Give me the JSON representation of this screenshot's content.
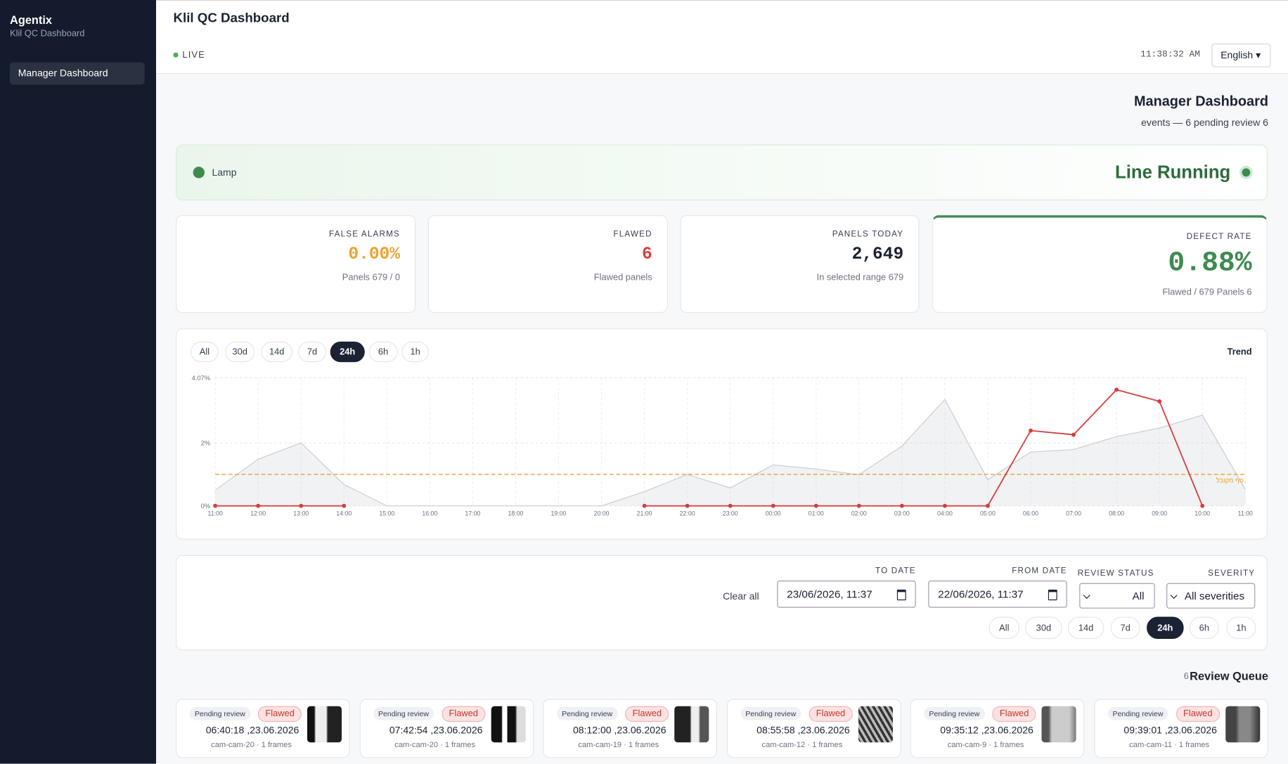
{
  "sidebar": {
    "brand": "Agentix",
    "subtitle": "Klil QC Dashboard",
    "nav": [
      "Manager Dashboard"
    ]
  },
  "header": {
    "title": "Klil QC Dashboard",
    "status": "LIVE",
    "clock": "11:38:32 AM",
    "language": "English"
  },
  "page": {
    "title": "Manager Dashboard",
    "subtitle": "events — 6 pending review 6"
  },
  "line_status": {
    "device": "Lamp",
    "state": "Line Running"
  },
  "kpis": [
    {
      "label": "FALSE ALARMS",
      "value": "0.00%",
      "note": "Panels 679 / 0",
      "color": "#f0a030"
    },
    {
      "label": "FLAWED",
      "value": "6",
      "note": "Flawed panels",
      "color": "#dc3c3c"
    },
    {
      "label": "PANELS TODAY",
      "value": "2,649",
      "note": "In selected range 679",
      "color": "#1a2233"
    },
    {
      "label": "DEFECT RATE",
      "value": "0.88%",
      "note": "Flawed / 679 Panels 6",
      "color": "#3d8b4f"
    }
  ],
  "ranges": [
    "All",
    "30d",
    "14d",
    "7d",
    "24h",
    "6h",
    "1h"
  ],
  "active_range": 4,
  "chart_data": {
    "type": "line",
    "title": "Trend",
    "x": [
      "11:00",
      "12:00",
      "13:00",
      "14:00",
      "15:00",
      "16:00",
      "17:00",
      "18:00",
      "19:00",
      "20:00",
      "21:00",
      "22:00",
      "23:00",
      "00:00",
      "01:00",
      "02:00",
      "03:00",
      "04:00",
      "05:00",
      "06:00",
      "07:00",
      "08:00",
      "09:00",
      "10:00",
      "11:00"
    ],
    "series": [
      {
        "type": "area",
        "color": "#c9ccd3",
        "values": [
          0.5,
          1.48,
          2.0,
          0.68,
          0,
          0,
          0,
          0,
          0,
          0,
          0.45,
          1.0,
          0.57,
          1.3,
          1.17,
          0.99,
          1.9,
          3.38,
          0.83,
          1.71,
          1.79,
          2.2,
          2.47,
          2.88,
          0.52
        ]
      },
      {
        "type": "line",
        "color": "#d63b3b",
        "values": [
          0,
          0,
          0,
          0,
          null,
          null,
          null,
          null,
          null,
          null,
          0,
          0,
          0,
          0,
          0,
          0,
          0,
          0,
          0,
          2.39,
          2.26,
          3.69,
          3.32,
          0,
          null
        ]
      }
    ],
    "threshold": {
      "value": 1.0,
      "label": "סף מקובל",
      "color": "#e8a030"
    },
    "ylim": [
      0,
      4.07
    ],
    "yticks": [
      {
        "value": 0,
        "label": "0%"
      },
      {
        "value": 2,
        "label": "2%"
      },
      {
        "value": 4.07,
        "label": "4.07%"
      }
    ],
    "grid": true
  },
  "filters": {
    "clear": "Clear all",
    "fields": [
      {
        "label": "TO DATE",
        "value": "23/06/2026, 11:37"
      },
      {
        "label": "FROM DATE",
        "value": "22/06/2026, 11:37"
      },
      {
        "label": "REVIEW STATUS",
        "value": "All"
      },
      {
        "label": "SEVERITY",
        "value": "All severities"
      }
    ]
  },
  "review_queue": {
    "title": "Review Queue",
    "count": "6",
    "items": [
      {
        "status": "Pending review",
        "tag": "Flawed",
        "time": "06:40:18 ,23.06.2026",
        "source": "cam-cam-20 · 1 frames"
      },
      {
        "status": "Pending review",
        "tag": "Flawed",
        "time": "07:42:54 ,23.06.2026",
        "source": "cam-cam-20 · 1 frames"
      },
      {
        "status": "Pending review",
        "tag": "Flawed",
        "time": "08:12:00 ,23.06.2026",
        "source": "cam-cam-19 · 1 frames"
      },
      {
        "status": "Pending review",
        "tag": "Flawed",
        "time": "08:55:58 ,23.06.2026",
        "source": "cam-cam-12 · 1 frames"
      },
      {
        "status": "Pending review",
        "tag": "Flawed",
        "time": "09:35:12 ,23.06.2026",
        "source": "cam-cam-9 · 1 frames"
      },
      {
        "status": "Pending review",
        "tag": "Flawed",
        "time": "09:39:01 ,23.06.2026",
        "source": "cam-cam-11 · 1 frames"
      }
    ]
  }
}
